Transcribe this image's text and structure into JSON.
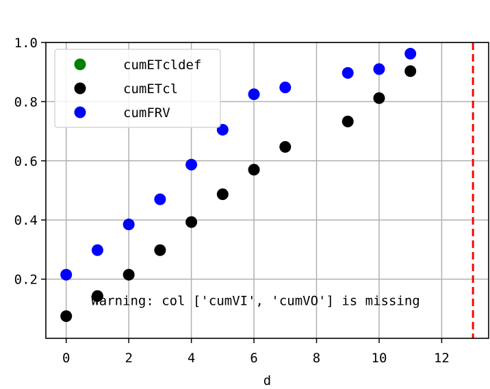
{
  "chart_data": {
    "type": "scatter",
    "title": "",
    "xlabel": "d",
    "ylabel": "",
    "xlim": [
      -0.65,
      13.5
    ],
    "ylim": [
      0.0,
      1.0
    ],
    "xticks": [
      0,
      2,
      4,
      6,
      8,
      10,
      12
    ],
    "xtick_labels": [
      "0",
      "2",
      "4",
      "6",
      "8",
      "10",
      "12"
    ],
    "yticks": [
      0.2,
      0.4,
      0.6,
      0.8,
      1.0
    ],
    "ytick_labels": [
      "0.2",
      "0.4",
      "0.6",
      "0.8",
      "1.0"
    ],
    "grid": true,
    "legend_position": "upper-left",
    "series": [
      {
        "name": "cumETcldef",
        "color": "#008000",
        "x": [],
        "y": []
      },
      {
        "name": "cumETcl",
        "color": "#000000",
        "x": [
          0,
          1,
          2,
          3,
          4,
          5,
          6,
          7,
          9,
          10,
          11
        ],
        "y": [
          0.075,
          0.143,
          0.215,
          0.298,
          0.393,
          0.487,
          0.57,
          0.647,
          0.733,
          0.812,
          0.903
        ]
      },
      {
        "name": "cumFRV",
        "color": "#0000ff",
        "x": [
          0,
          1,
          2,
          3,
          4,
          5,
          6,
          7,
          9,
          10,
          11
        ],
        "y": [
          0.215,
          0.298,
          0.385,
          0.47,
          0.587,
          0.705,
          0.825,
          0.848,
          0.897,
          0.91,
          0.962
        ]
      }
    ],
    "vline": {
      "x": 13,
      "color": "#ff0000",
      "style": "dashed"
    },
    "annotation": {
      "text": "Warning: col ['cumVI', 'cumVO'] is missing",
      "x": 0.8,
      "y": 0.112
    }
  }
}
